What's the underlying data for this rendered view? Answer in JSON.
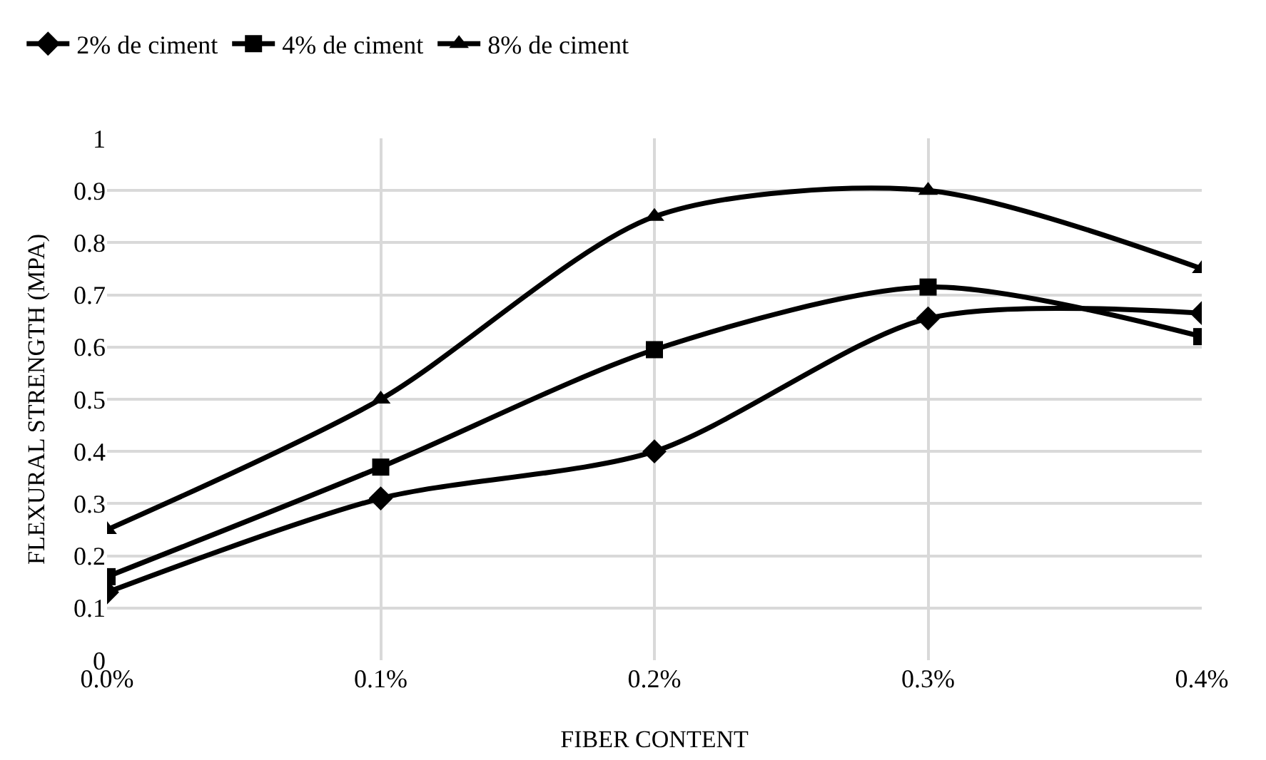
{
  "chart_data": {
    "type": "line",
    "xlabel": "FIBER CONTENT",
    "ylabel": "FLEXURAL STRENGTH (MPA)",
    "categories": [
      "0.0%",
      "0.1%",
      "0.2%",
      "0.3%",
      "0.4%"
    ],
    "series": [
      {
        "name": "2% de ciment",
        "color": "#000000",
        "marker": "diamond",
        "values": [
          0.13,
          0.31,
          0.4,
          0.655,
          0.665
        ]
      },
      {
        "name": "4% de ciment",
        "color": "#000000",
        "marker": "square",
        "values": [
          0.16,
          0.37,
          0.595,
          0.715,
          0.62
        ]
      },
      {
        "name": "8% de ciment",
        "color": "#000000",
        "marker": "triangle",
        "values": [
          0.25,
          0.5,
          0.85,
          0.9,
          0.75
        ]
      }
    ],
    "ylim": [
      0,
      1
    ],
    "yticks": [
      0,
      0.1,
      0.2,
      0.3,
      0.4,
      0.5,
      0.6,
      0.7,
      0.8,
      0.9,
      1
    ],
    "grid": true,
    "legend": "top left",
    "line_style": "solid"
  }
}
